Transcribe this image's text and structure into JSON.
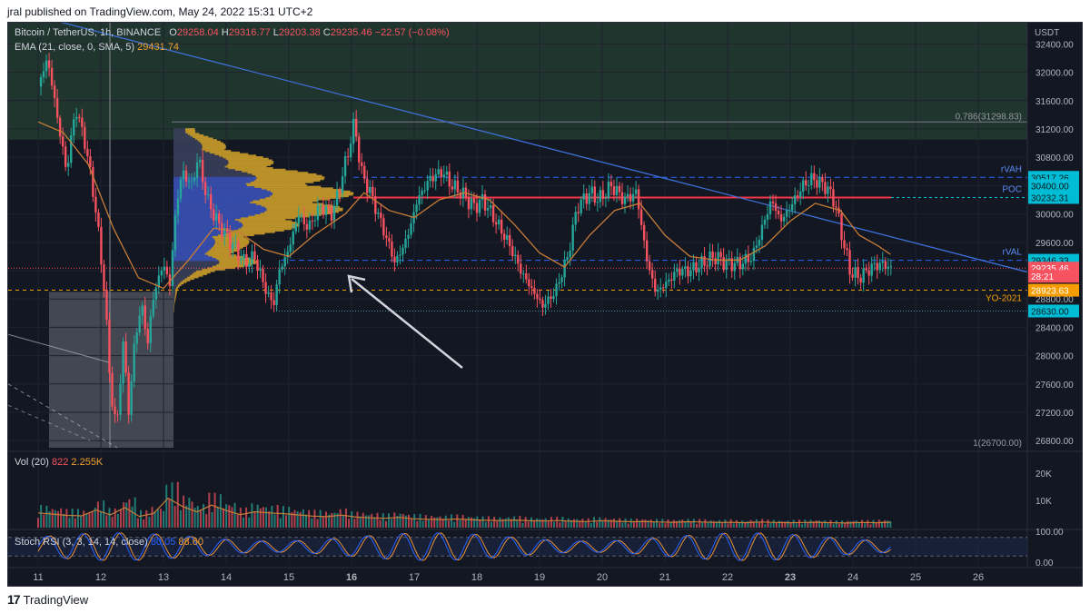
{
  "header": {
    "published": "jral published on TradingView.com, May 24, 2022 15:31 UTC+2"
  },
  "legend": {
    "symbol": "Bitcoin / TetherUS, 1h, BINANCE",
    "o_label": "O",
    "o": "29258.04",
    "h_label": "H",
    "h": "29316.77",
    "l_label": "L",
    "l": "29203.38",
    "c_label": "C",
    "c": "29235.46",
    "change": "−22.57 (−0.08%)",
    "ema_label": "EMA (21, close, 0, SMA, 5)",
    "ema": "29431.74",
    "vol_label": "Vol (20)",
    "vol_a": "822",
    "vol_b": "2.255K",
    "stoch_label": "Stoch RSI (3, 3, 14, 14, close)",
    "stoch_k": "80.05",
    "stoch_d": "88.60"
  },
  "footer": {
    "brand": "TradingView",
    "logo": "17"
  },
  "colors": {
    "bg": "#131722",
    "up": "#26a69a",
    "down": "#f7525f",
    "ema": "#c77d38",
    "trend": "#3d6fd6",
    "profile_orange": "#c79a2a",
    "profile_blue": "#3a52b8",
    "poc_red": "#f23645",
    "cyan_label": "#00bcd4",
    "orange_label": "#f59d00"
  },
  "chart_data": {
    "type": "candlestick",
    "symbol": "Bitcoin / TetherUS",
    "interval": "1h",
    "exchange": "BINANCE",
    "y_axis_unit": "USDT",
    "x_tick_labels": [
      "11",
      "12",
      "13",
      "14",
      "15",
      "16",
      "17",
      "18",
      "19",
      "20",
      "21",
      "22",
      "23",
      "24",
      "25",
      "26"
    ],
    "x_bold_ticks": [
      "16",
      "23"
    ],
    "y_ticks": [
      "32400.00",
      "32000.00",
      "31600.00",
      "31200.00",
      "30800.00",
      "30400.00",
      "30000.00",
      "29600.00",
      "29200.00",
      "28800.00",
      "28400.00",
      "28000.00",
      "27600.00",
      "27200.00",
      "26800.00"
    ],
    "ylim": [
      26700,
      32700
    ],
    "price_path": [
      [
        11.0,
        31800
      ],
      [
        11.15,
        32200
      ],
      [
        11.3,
        31400
      ],
      [
        11.45,
        30600
      ],
      [
        11.6,
        31500
      ],
      [
        11.75,
        31000
      ],
      [
        11.9,
        30200
      ],
      [
        12.05,
        29000
      ],
      [
        12.15,
        27600
      ],
      [
        12.25,
        26900
      ],
      [
        12.35,
        28200
      ],
      [
        12.45,
        27200
      ],
      [
        12.55,
        28300
      ],
      [
        12.65,
        28700
      ],
      [
        12.75,
        28200
      ],
      [
        12.85,
        28900
      ],
      [
        13.0,
        29300
      ],
      [
        13.1,
        29000
      ],
      [
        13.2,
        30100
      ],
      [
        13.3,
        30600
      ],
      [
        13.45,
        30400
      ],
      [
        13.55,
        30800
      ],
      [
        13.7,
        30200
      ],
      [
        13.85,
        29900
      ],
      [
        14.0,
        29700
      ],
      [
        14.15,
        29500
      ],
      [
        14.3,
        29300
      ],
      [
        14.45,
        29400
      ],
      [
        14.6,
        29000
      ],
      [
        14.75,
        28700
      ],
      [
        14.85,
        29200
      ],
      [
        15.0,
        29500
      ],
      [
        15.15,
        30000
      ],
      [
        15.3,
        29800
      ],
      [
        15.5,
        30100
      ],
      [
        15.7,
        30000
      ],
      [
        15.9,
        30700
      ],
      [
        16.05,
        31300
      ],
      [
        16.15,
        30600
      ],
      [
        16.3,
        30300
      ],
      [
        16.5,
        29800
      ],
      [
        16.7,
        29300
      ],
      [
        16.9,
        29700
      ],
      [
        17.05,
        30200
      ],
      [
        17.25,
        30500
      ],
      [
        17.45,
        30600
      ],
      [
        17.6,
        30400
      ],
      [
        17.75,
        30300
      ],
      [
        17.95,
        30100
      ],
      [
        18.1,
        30200
      ],
      [
        18.3,
        29900
      ],
      [
        18.5,
        29600
      ],
      [
        18.7,
        29200
      ],
      [
        18.9,
        28900
      ],
      [
        19.05,
        28700
      ],
      [
        19.25,
        28900
      ],
      [
        19.45,
        29400
      ],
      [
        19.6,
        30100
      ],
      [
        19.8,
        30300
      ],
      [
        19.95,
        30200
      ],
      [
        20.15,
        30400
      ],
      [
        20.35,
        30200
      ],
      [
        20.55,
        30300
      ],
      [
        20.7,
        29400
      ],
      [
        20.85,
        28900
      ],
      [
        21.0,
        29000
      ],
      [
        21.2,
        29200
      ],
      [
        21.4,
        29200
      ],
      [
        21.6,
        29300
      ],
      [
        21.8,
        29400
      ],
      [
        22.0,
        29300
      ],
      [
        22.2,
        29300
      ],
      [
        22.4,
        29400
      ],
      [
        22.55,
        29800
      ],
      [
        22.7,
        30200
      ],
      [
        22.85,
        29900
      ],
      [
        23.0,
        30100
      ],
      [
        23.2,
        30400
      ],
      [
        23.35,
        30500
      ],
      [
        23.55,
        30400
      ],
      [
        23.7,
        30200
      ],
      [
        23.85,
        29600
      ],
      [
        23.95,
        29200
      ],
      [
        24.1,
        29100
      ],
      [
        24.3,
        29250
      ],
      [
        24.45,
        29300
      ],
      [
        24.6,
        29235
      ]
    ],
    "ema_path": [
      [
        11.0,
        31300
      ],
      [
        11.4,
        31150
      ],
      [
        11.8,
        30700
      ],
      [
        12.2,
        29800
      ],
      [
        12.6,
        29100
      ],
      [
        13.0,
        28950
      ],
      [
        13.4,
        29350
      ],
      [
        13.8,
        29800
      ],
      [
        14.2,
        29750
      ],
      [
        14.6,
        29500
      ],
      [
        15.0,
        29400
      ],
      [
        15.4,
        29700
      ],
      [
        15.9,
        30000
      ],
      [
        16.2,
        30300
      ],
      [
        16.6,
        30050
      ],
      [
        17.0,
        29950
      ],
      [
        17.4,
        30200
      ],
      [
        17.8,
        30300
      ],
      [
        18.2,
        30200
      ],
      [
        18.6,
        29850
      ],
      [
        19.0,
        29450
      ],
      [
        19.4,
        29250
      ],
      [
        19.8,
        29700
      ],
      [
        20.2,
        30050
      ],
      [
        20.6,
        30150
      ],
      [
        21.0,
        29700
      ],
      [
        21.4,
        29400
      ],
      [
        21.8,
        29350
      ],
      [
        22.2,
        29350
      ],
      [
        22.6,
        29550
      ],
      [
        23.0,
        29900
      ],
      [
        23.4,
        30150
      ],
      [
        23.8,
        30050
      ],
      [
        24.1,
        29700
      ],
      [
        24.4,
        29550
      ],
      [
        24.6,
        29430
      ]
    ],
    "levels": [
      {
        "name": "0.786(31298.83)",
        "value": 31298.83
      },
      {
        "name": "rVAH",
        "value": 30517.26
      },
      {
        "name": "POC",
        "value": 30232.31
      },
      {
        "name": "rVAL",
        "value": 29346.33
      },
      {
        "name": "YO-2021",
        "value": 28923.63
      },
      {
        "name": "1(26700.00)",
        "value": 26700.0
      }
    ],
    "price_labels": [
      {
        "text": "30517.26",
        "value": 30517.26,
        "style": "cyan"
      },
      {
        "text": "30400.00",
        "value": 30400.0,
        "style": "cyan"
      },
      {
        "text": "30232.31",
        "value": 30232.31,
        "style": "cyan"
      },
      {
        "text": "29346.33",
        "value": 29346.33,
        "style": "cyan"
      },
      {
        "text": "29235.46",
        "value": 29235.46,
        "style": "red"
      },
      {
        "text": "28:21",
        "value": 29120.0,
        "style": "red"
      },
      {
        "text": "28923.63",
        "value": 28923.63,
        "style": "orange"
      },
      {
        "text": "28630.00",
        "value": 28630.0,
        "style": "cyan"
      }
    ],
    "volume": {
      "axis_ticks": [
        "20K",
        "10K"
      ],
      "ylim": [
        0,
        26000
      ],
      "values": [
        6000,
        5500,
        5000,
        4800,
        7200,
        5200,
        8200,
        4600,
        5800,
        12000,
        8600,
        6400,
        9200,
        7000,
        5300,
        6500,
        6000,
        5700,
        5200,
        4700,
        4500,
        5100,
        4300,
        4000,
        3800,
        4200,
        3600,
        3400,
        3300,
        3500,
        3200,
        3000,
        2900,
        3100,
        2800,
        2700,
        2900,
        2600,
        2500,
        2800,
        2600,
        2400,
        2500,
        2300,
        2200,
        2400,
        2300,
        2100,
        2200,
        2000,
        2300,
        2100,
        2000,
        2100,
        2200,
        2000,
        1900,
        2100,
        2000,
        2200
      ]
    },
    "stoch_rsi": {
      "axis_ticks": [
        "100.00",
        "0.00"
      ],
      "ylim": [
        0,
        100
      ],
      "k_cycles": 24
    }
  }
}
